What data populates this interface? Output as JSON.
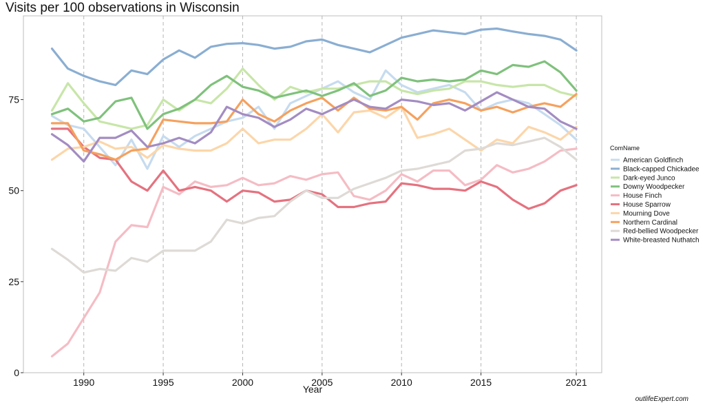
{
  "chart_data": {
    "type": "line",
    "title": "Visits per 100 observations in Wisconsin",
    "xlabel": "Year",
    "ylabel": "",
    "xlim": [
      1986.2,
      2022.6
    ],
    "ylim": [
      0,
      98
    ],
    "x_ticks": [
      1990,
      1995,
      2000,
      2005,
      2010,
      2015,
      2021
    ],
    "y_ticks": [
      0,
      25,
      50,
      75
    ],
    "grid": "vertical dashed at x ticks",
    "legend": {
      "title": "ComName",
      "placement": "right"
    },
    "x": [
      1988,
      1989,
      1990,
      1991,
      1992,
      1993,
      1994,
      1995,
      1996,
      1997,
      1998,
      1999,
      2000,
      2001,
      2002,
      2003,
      2004,
      2005,
      2006,
      2007,
      2008,
      2009,
      2010,
      2011,
      2012,
      2013,
      2014,
      2015,
      2016,
      2017,
      2018,
      2019,
      2020,
      2021
    ],
    "series": [
      {
        "name": "American Goldfinch",
        "color": "#c6dbef",
        "values": [
          70.5,
          68,
          67,
          62,
          57,
          64,
          56,
          65,
          62,
          65,
          67,
          69,
          70,
          73,
          67,
          74,
          76,
          78,
          80,
          77,
          75,
          83,
          79,
          77,
          78,
          79,
          77,
          72,
          74,
          75,
          74,
          71,
          68,
          64
        ]
      },
      {
        "name": "Black-capped Chickadee",
        "color": "#8aaed2",
        "values": [
          89,
          83.5,
          81.5,
          80,
          79,
          83,
          82,
          86,
          88.5,
          86.5,
          89.5,
          90.3,
          90.5,
          90,
          89,
          89.5,
          91,
          91.5,
          90,
          89,
          88,
          90,
          92,
          93,
          94,
          93.5,
          93,
          94.2,
          94.5,
          93.7,
          93,
          92.5,
          91.5,
          88.5
        ]
      },
      {
        "name": "Dark-eyed Junco",
        "color": "#c7e6a8",
        "values": [
          72,
          79.5,
          74,
          69,
          68,
          67,
          68,
          75,
          72,
          75,
          74,
          78,
          83.5,
          79,
          75,
          78.5,
          77,
          78,
          78,
          79,
          80,
          80,
          77.5,
          76.5,
          77.5,
          78,
          80,
          80,
          79,
          78.5,
          79,
          79,
          77,
          76
        ]
      },
      {
        "name": "Downy Woodpecker",
        "color": "#7fc17c",
        "values": [
          71,
          72.5,
          69,
          70,
          74.5,
          75.5,
          67,
          71,
          72.5,
          75,
          79,
          81.5,
          78.5,
          77.5,
          75.5,
          76.5,
          77.5,
          76,
          77.5,
          79.5,
          76,
          77.5,
          81,
          80,
          80.5,
          80,
          80.5,
          83,
          82,
          84.5,
          84,
          85.5,
          82.5,
          77.5
        ]
      },
      {
        "name": "House Finch",
        "color": "#f5bcc4",
        "values": [
          4.5,
          8,
          15,
          22,
          36,
          40.5,
          40,
          51,
          49,
          52.5,
          51,
          51.5,
          53.5,
          51.5,
          52,
          54,
          53,
          54.5,
          55,
          48.5,
          47.5,
          50,
          54.5,
          52.5,
          55.5,
          55.5,
          51.5,
          53,
          57,
          55,
          56,
          58,
          61,
          61.5
        ]
      },
      {
        "name": "House Sparrow",
        "color": "#e5727f",
        "values": [
          67,
          67,
          62,
          59,
          58.5,
          52.5,
          50,
          55.5,
          50,
          51,
          50,
          47,
          50,
          49.5,
          47,
          47.5,
          50,
          49,
          45.5,
          45.5,
          46.5,
          47,
          52,
          51.5,
          50.5,
          50.5,
          50,
          52.5,
          51,
          47.5,
          45,
          46.5,
          50,
          51.5
        ]
      },
      {
        "name": "Mourning Dove",
        "color": "#fcd6a9",
        "values": [
          58.5,
          61.5,
          62,
          63.5,
          61.5,
          62,
          59,
          62.5,
          61.5,
          61,
          61,
          63,
          67,
          63,
          64,
          64,
          67,
          71,
          66,
          71.5,
          72,
          70,
          73,
          64.5,
          65.5,
          67,
          64,
          61,
          64,
          63,
          67.5,
          66,
          64,
          67.5
        ]
      },
      {
        "name": "Northern Cardinal",
        "color": "#f5a15e",
        "values": [
          68.5,
          68.5,
          61,
          60,
          58.5,
          61,
          61.5,
          69.5,
          69,
          68.5,
          68.5,
          69,
          75,
          71,
          69,
          72,
          74,
          75.5,
          72,
          75.5,
          72.5,
          72,
          73,
          69.5,
          74,
          75,
          74,
          72,
          73,
          71.5,
          73,
          74,
          73,
          76.5
        ]
      },
      {
        "name": "Red-bellied Woodpecker",
        "color": "#dedad6",
        "values": [
          34,
          31,
          27.5,
          28.5,
          28,
          31.5,
          30.5,
          33.5,
          33.5,
          33.5,
          36,
          42,
          41,
          42.5,
          43,
          47,
          50,
          48,
          48,
          50.5,
          52,
          53.5,
          55.5,
          56,
          57,
          58,
          61,
          61.5,
          63,
          62.5,
          63.5,
          64.5,
          62,
          58.5
        ]
      },
      {
        "name": "White-breasted Nuthatch",
        "color": "#a38cc2",
        "values": [
          65.5,
          62.5,
          58,
          64.5,
          64.5,
          66.5,
          62,
          63,
          64.5,
          63,
          66,
          73,
          71,
          70,
          67.5,
          69.5,
          72.5,
          71,
          73,
          75,
          73,
          72.5,
          75,
          74.5,
          73.5,
          74,
          72,
          74.5,
          77,
          75,
          73,
          72.5,
          69,
          67
        ]
      }
    ]
  },
  "watermark": "outlifeExpert.com"
}
